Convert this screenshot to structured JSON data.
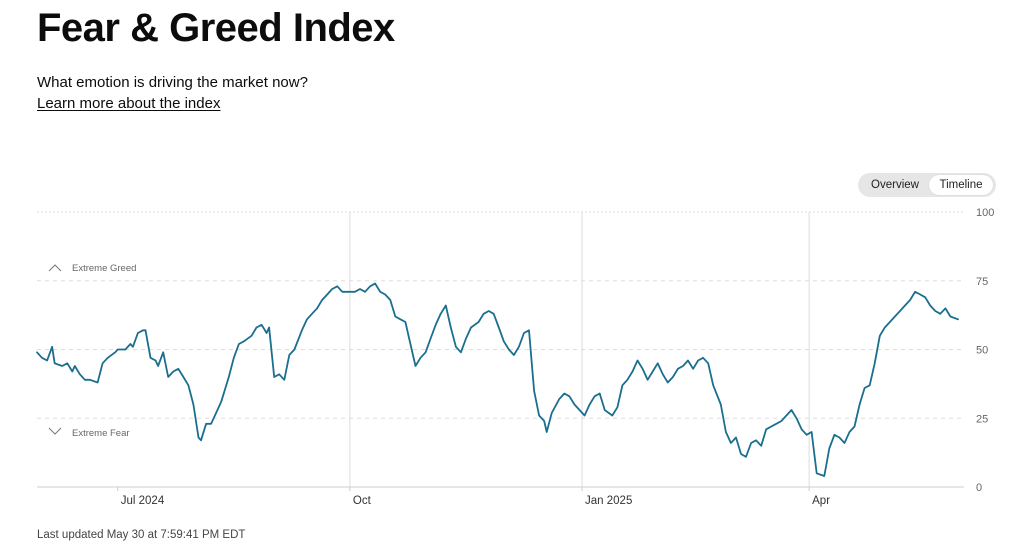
{
  "header": {
    "title": "Fear & Greed Index",
    "subtitle": "What emotion is driving the market now?",
    "learn_more": "Learn more about the index"
  },
  "view_toggle": {
    "options": [
      "Overview",
      "Timeline"
    ],
    "selected": "Timeline"
  },
  "footer": {
    "last_updated": "Last updated May 30 at 7:59:41 PM EDT"
  },
  "colors": {
    "line": "#1a6e8e",
    "grid": "#dddddd",
    "axis": "#cccccc",
    "text_muted": "#666666"
  },
  "chart_data": {
    "type": "line",
    "ylim": [
      0,
      100
    ],
    "y_ticks": [
      0,
      25,
      50,
      75,
      100
    ],
    "x_range": [
      "2024-05-30",
      "2025-05-30"
    ],
    "x_tick_labels": [
      {
        "date": "2024-07-01",
        "label": "Jul 2024"
      },
      {
        "date": "2024-10-01",
        "label": "Oct"
      },
      {
        "date": "2025-01-01",
        "label": "Jan 2025"
      },
      {
        "date": "2025-04-01",
        "label": "Apr"
      }
    ],
    "vertical_gridlines": [
      "2024-10-01",
      "2025-01-01",
      "2025-04-01"
    ],
    "annotations": [
      {
        "label": "Extreme Greed",
        "value": 80,
        "direction": "up"
      },
      {
        "label": "Extreme Fear",
        "value": 20,
        "direction": "down"
      }
    ],
    "series": [
      {
        "points": [
          [
            "2024-05-30",
            49
          ],
          [
            "2024-06-01",
            47
          ],
          [
            "2024-06-03",
            46
          ],
          [
            "2024-06-05",
            51
          ],
          [
            "2024-06-06",
            45
          ],
          [
            "2024-06-09",
            44
          ],
          [
            "2024-06-11",
            45
          ],
          [
            "2024-06-13",
            42
          ],
          [
            "2024-06-14",
            44
          ],
          [
            "2024-06-16",
            41
          ],
          [
            "2024-06-18",
            39
          ],
          [
            "2024-06-20",
            39
          ],
          [
            "2024-06-23",
            38
          ],
          [
            "2024-06-25",
            45
          ],
          [
            "2024-06-27",
            47
          ],
          [
            "2024-06-30",
            49
          ],
          [
            "2024-07-01",
            50
          ],
          [
            "2024-07-04",
            50
          ],
          [
            "2024-07-06",
            52
          ],
          [
            "2024-07-07",
            51
          ],
          [
            "2024-07-09",
            56
          ],
          [
            "2024-07-11",
            57
          ],
          [
            "2024-07-12",
            57
          ],
          [
            "2024-07-14",
            47
          ],
          [
            "2024-07-16",
            46
          ],
          [
            "2024-07-17",
            44
          ],
          [
            "2024-07-19",
            49
          ],
          [
            "2024-07-21",
            40
          ],
          [
            "2024-07-23",
            42
          ],
          [
            "2024-07-25",
            43
          ],
          [
            "2024-07-27",
            40
          ],
          [
            "2024-07-29",
            37
          ],
          [
            "2024-07-31",
            30
          ],
          [
            "2024-08-02",
            18
          ],
          [
            "2024-08-03",
            17
          ],
          [
            "2024-08-05",
            23
          ],
          [
            "2024-08-07",
            23
          ],
          [
            "2024-08-09",
            27
          ],
          [
            "2024-08-11",
            31
          ],
          [
            "2024-08-14",
            40
          ],
          [
            "2024-08-16",
            47
          ],
          [
            "2024-08-18",
            52
          ],
          [
            "2024-08-20",
            53
          ],
          [
            "2024-08-23",
            55
          ],
          [
            "2024-08-25",
            58
          ],
          [
            "2024-08-27",
            59
          ],
          [
            "2024-08-29",
            56
          ],
          [
            "2024-08-30",
            58
          ],
          [
            "2024-09-01",
            40
          ],
          [
            "2024-09-03",
            41
          ],
          [
            "2024-09-05",
            39
          ],
          [
            "2024-09-07",
            48
          ],
          [
            "2024-09-09",
            50
          ],
          [
            "2024-09-12",
            57
          ],
          [
            "2024-09-14",
            61
          ],
          [
            "2024-09-16",
            63
          ],
          [
            "2024-09-18",
            65
          ],
          [
            "2024-09-20",
            68
          ],
          [
            "2024-09-22",
            70
          ],
          [
            "2024-09-24",
            72
          ],
          [
            "2024-09-26",
            73
          ],
          [
            "2024-09-28",
            71
          ],
          [
            "2024-10-01",
            71
          ],
          [
            "2024-10-03",
            71
          ],
          [
            "2024-10-05",
            72
          ],
          [
            "2024-10-07",
            71
          ],
          [
            "2024-10-09",
            73
          ],
          [
            "2024-10-11",
            74
          ],
          [
            "2024-10-13",
            71
          ],
          [
            "2024-10-15",
            70
          ],
          [
            "2024-10-17",
            68
          ],
          [
            "2024-10-19",
            62
          ],
          [
            "2024-10-21",
            61
          ],
          [
            "2024-10-23",
            60
          ],
          [
            "2024-10-25",
            52
          ],
          [
            "2024-10-27",
            44
          ],
          [
            "2024-10-29",
            47
          ],
          [
            "2024-10-31",
            49
          ],
          [
            "2024-11-02",
            54
          ],
          [
            "2024-11-04",
            59
          ],
          [
            "2024-11-06",
            63
          ],
          [
            "2024-11-08",
            66
          ],
          [
            "2024-11-10",
            58
          ],
          [
            "2024-11-12",
            51
          ],
          [
            "2024-11-14",
            49
          ],
          [
            "2024-11-16",
            54
          ],
          [
            "2024-11-18",
            58
          ],
          [
            "2024-11-21",
            60
          ],
          [
            "2024-11-23",
            63
          ],
          [
            "2024-11-25",
            64
          ],
          [
            "2024-11-27",
            63
          ],
          [
            "2024-11-29",
            58
          ],
          [
            "2024-12-01",
            53
          ],
          [
            "2024-12-03",
            50
          ],
          [
            "2024-12-05",
            48
          ],
          [
            "2024-12-07",
            51
          ],
          [
            "2024-12-09",
            56
          ],
          [
            "2024-12-11",
            57
          ],
          [
            "2024-12-13",
            35
          ],
          [
            "2024-12-15",
            26
          ],
          [
            "2024-12-17",
            24
          ],
          [
            "2024-12-18",
            20
          ],
          [
            "2024-12-20",
            27
          ],
          [
            "2024-12-23",
            32
          ],
          [
            "2024-12-25",
            34
          ],
          [
            "2024-12-27",
            33
          ],
          [
            "2024-12-29",
            30
          ],
          [
            "2024-12-31",
            28
          ],
          [
            "2025-01-02",
            26
          ],
          [
            "2025-01-04",
            30
          ],
          [
            "2025-01-06",
            33
          ],
          [
            "2025-01-08",
            34
          ],
          [
            "2025-01-10",
            28
          ],
          [
            "2025-01-13",
            26
          ],
          [
            "2025-01-15",
            29
          ],
          [
            "2025-01-17",
            37
          ],
          [
            "2025-01-19",
            39
          ],
          [
            "2025-01-21",
            42
          ],
          [
            "2025-01-23",
            46
          ],
          [
            "2025-01-25",
            43
          ],
          [
            "2025-01-27",
            39
          ],
          [
            "2025-01-29",
            42
          ],
          [
            "2025-01-31",
            45
          ],
          [
            "2025-02-02",
            41
          ],
          [
            "2025-02-04",
            38
          ],
          [
            "2025-02-06",
            40
          ],
          [
            "2025-02-08",
            43
          ],
          [
            "2025-02-10",
            44
          ],
          [
            "2025-02-12",
            46
          ],
          [
            "2025-02-14",
            43
          ],
          [
            "2025-02-16",
            46
          ],
          [
            "2025-02-18",
            47
          ],
          [
            "2025-02-20",
            45
          ],
          [
            "2025-02-22",
            37
          ],
          [
            "2025-02-25",
            30
          ],
          [
            "2025-02-27",
            20
          ],
          [
            "2025-03-01",
            16
          ],
          [
            "2025-03-03",
            18
          ],
          [
            "2025-03-05",
            12
          ],
          [
            "2025-03-07",
            11
          ],
          [
            "2025-03-09",
            16
          ],
          [
            "2025-03-11",
            17
          ],
          [
            "2025-03-13",
            15
          ],
          [
            "2025-03-15",
            21
          ],
          [
            "2025-03-17",
            22
          ],
          [
            "2025-03-19",
            23
          ],
          [
            "2025-03-21",
            24
          ],
          [
            "2025-03-23",
            26
          ],
          [
            "2025-03-25",
            28
          ],
          [
            "2025-03-27",
            25
          ],
          [
            "2025-03-29",
            21
          ],
          [
            "2025-03-31",
            19
          ],
          [
            "2025-04-02",
            20
          ],
          [
            "2025-04-04",
            5
          ],
          [
            "2025-04-07",
            4
          ],
          [
            "2025-04-09",
            14
          ],
          [
            "2025-04-11",
            19
          ],
          [
            "2025-04-13",
            18
          ],
          [
            "2025-04-15",
            16
          ],
          [
            "2025-04-17",
            20
          ],
          [
            "2025-04-19",
            22
          ],
          [
            "2025-04-21",
            30
          ],
          [
            "2025-04-23",
            36
          ],
          [
            "2025-04-25",
            37
          ],
          [
            "2025-04-27",
            45
          ],
          [
            "2025-04-29",
            55
          ],
          [
            "2025-05-01",
            58
          ],
          [
            "2025-05-03",
            60
          ],
          [
            "2025-05-05",
            62
          ],
          [
            "2025-05-07",
            64
          ],
          [
            "2025-05-09",
            66
          ],
          [
            "2025-05-11",
            68
          ],
          [
            "2025-05-13",
            71
          ],
          [
            "2025-05-15",
            70
          ],
          [
            "2025-05-17",
            69
          ],
          [
            "2025-05-19",
            66
          ],
          [
            "2025-05-21",
            64
          ],
          [
            "2025-05-23",
            63
          ],
          [
            "2025-05-25",
            65
          ],
          [
            "2025-05-27",
            62
          ],
          [
            "2025-05-30",
            61
          ]
        ]
      }
    ]
  }
}
